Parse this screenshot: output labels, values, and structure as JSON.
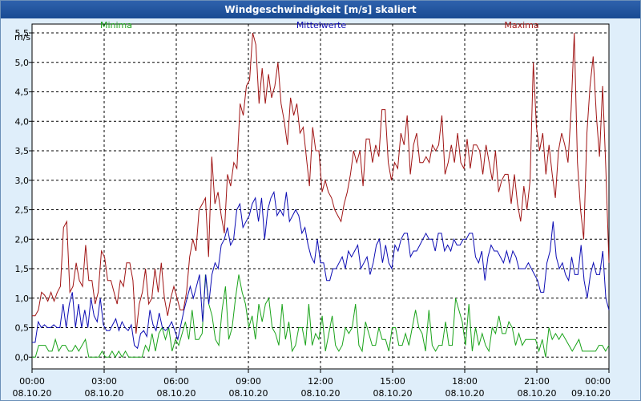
{
  "window": {
    "title": "Windgeschwindigkeit [m/s] skaliert"
  },
  "colors": {
    "min": "#1aa31a",
    "mean": "#0c0cb4",
    "max": "#a01414",
    "background": "#dfeefa",
    "titlebar": "#1e52a0"
  },
  "chart_data": {
    "type": "line",
    "title": "Windgeschwindigkeit [m/s] skaliert",
    "ylabel": "m/s",
    "ylim": [
      -0.2,
      5.65
    ],
    "yticks": [
      "0,0",
      "0,5",
      "1,0",
      "1,5",
      "2,0",
      "2,5",
      "3,0",
      "3,5",
      "4,0",
      "4,5",
      "5,0",
      "5,5"
    ],
    "xlim": [
      0,
      24
    ],
    "xticks": [
      {
        "time": "00:00",
        "date": "08.10.20"
      },
      {
        "time": "03:00",
        "date": "08.10.20"
      },
      {
        "time": "06:00",
        "date": "08.10.20"
      },
      {
        "time": "09:00",
        "date": "08.10.20"
      },
      {
        "time": "12:00",
        "date": "08.10.20"
      },
      {
        "time": "15:00",
        "date": "08.10.20"
      },
      {
        "time": "18:00",
        "date": "08.10.20"
      },
      {
        "time": "21:00",
        "date": "08.10.20"
      },
      {
        "time": "00:00",
        "date": "09.10.20"
      }
    ],
    "grid": true,
    "legend": [
      "Minima",
      "Mittelwerte",
      "Maxima"
    ],
    "x_step_hours": 0.16667,
    "series": [
      {
        "name": "Minima",
        "key": "min",
        "values": [
          0,
          0,
          0.2,
          0.2,
          0.2,
          0.1,
          0.1,
          0.3,
          0.1,
          0.2,
          0.2,
          0.1,
          0.1,
          0.2,
          0.1,
          0.2,
          0.3,
          0,
          0,
          0,
          0,
          0.1,
          0,
          0,
          0.1,
          0,
          0.1,
          0,
          0.1,
          0,
          0,
          0,
          0,
          0,
          0.2,
          0.1,
          0.4,
          0.1,
          0.4,
          0.5,
          0.3,
          0.5,
          0.1,
          0.3,
          0.2,
          0.4,
          0.6,
          0.3,
          0.8,
          0.3,
          0.3,
          0.4,
          1.4,
          0.9,
          0.7,
          0.3,
          0.2,
          0.8,
          1.2,
          0.3,
          0.5,
          1,
          1.4,
          1.1,
          0.9,
          0.5,
          0.7,
          0.3,
          0.9,
          0.6,
          0.9,
          1,
          0.5,
          0.4,
          0.2,
          0.9,
          0.3,
          0.6,
          0.1,
          0.2,
          0.5,
          0.5,
          0.2,
          0.9,
          0.2,
          0.4,
          0.3,
          0.7,
          0.1,
          0.4,
          0.7,
          0.2,
          0.1,
          0.2,
          0.5,
          0.4,
          0.5,
          0.9,
          0.2,
          0.1,
          0.6,
          0.4,
          0.2,
          0.2,
          0.5,
          0.3,
          0.3,
          0.1,
          0.5,
          0.5,
          0.2,
          0.2,
          0.4,
          0.2,
          0.5,
          0.8,
          0.5,
          0.4,
          0.1,
          0.8,
          0.2,
          0.1,
          0.2,
          0.2,
          0.6,
          0.2,
          0.2,
          1,
          0.8,
          0.6,
          0.2,
          0.9,
          0.1,
          0.5,
          0.2,
          0.4,
          0.2,
          0.1,
          0.5,
          0.4,
          0.7,
          0.4,
          0.4,
          0.6,
          0.5,
          0.2,
          0.4,
          0.2,
          0.3,
          0.3,
          0.3,
          0.3,
          0.1,
          0.3,
          0,
          0.5,
          0.3,
          0.4,
          0.3,
          0.4,
          0.3,
          0.2,
          0.1,
          0.2,
          0.3,
          0.1,
          0.1,
          0.1,
          0.1,
          0.1,
          0.2,
          0.2,
          0.1,
          0.2
        ]
      },
      {
        "name": "Mittelwerte",
        "key": "mean",
        "values": [
          0.25,
          0.25,
          0.6,
          0.5,
          0.55,
          0.5,
          0.5,
          0.55,
          0.5,
          0.5,
          0.9,
          0.5,
          0.9,
          1.1,
          0.5,
          0.9,
          0.5,
          0.8,
          0.5,
          1,
          0.7,
          0.6,
          1,
          0.55,
          0.45,
          0.45,
          0.55,
          0.65,
          0.45,
          0.6,
          0.5,
          0.45,
          0.55,
          0.2,
          0.15,
          0.4,
          0.45,
          0.35,
          0.8,
          0.55,
          0.45,
          0.75,
          0.5,
          0.45,
          0.5,
          0.6,
          0.45,
          0.3,
          0.55,
          0.8,
          1,
          1.2,
          1,
          1.2,
          1.4,
          0.6,
          1.4,
          0.9,
          1.4,
          1.6,
          1.5,
          1.9,
          2,
          2.2,
          1.9,
          2,
          2.5,
          2.6,
          2.2,
          2.3,
          2.4,
          2.6,
          2.7,
          2.3,
          2.7,
          2,
          2.5,
          2.7,
          2.8,
          2.4,
          2.5,
          2.4,
          2.8,
          2.3,
          2.4,
          2.5,
          2.4,
          2.1,
          2.2,
          1.9,
          1.7,
          1.6,
          2,
          1.6,
          1.6,
          1.3,
          1.3,
          1.5,
          1.5,
          1.6,
          1.7,
          1.5,
          1.8,
          1.7,
          1.8,
          1.9,
          1.5,
          1.6,
          1.7,
          1.4,
          1.6,
          1.9,
          2,
          1.6,
          1.9,
          1.6,
          1.5,
          1.9,
          1.8,
          2,
          2.1,
          2.1,
          1.7,
          1.8,
          1.8,
          1.9,
          2,
          2.1,
          2,
          2,
          1.8,
          2.1,
          2.1,
          1.8,
          1.9,
          1.8,
          2,
          1.9,
          1.9,
          2,
          2,
          2.1,
          2.1,
          1.7,
          1.6,
          1.8,
          1.3,
          1.7,
          1.9,
          1.8,
          1.8,
          1.7,
          1.6,
          1.8,
          1.6,
          1.8,
          1.7,
          1.5,
          1.5,
          1.5,
          1.6,
          1.5,
          1.4,
          1.3,
          1.1,
          1.1,
          1.6,
          1.8,
          2.3,
          1.7,
          1.5,
          1.6,
          1.4,
          1.3,
          1.7,
          1.4,
          1.4,
          1.9,
          1.3,
          1,
          1.4,
          1.6,
          1.4,
          1.4,
          1.8,
          1,
          0.8
        ]
      },
      {
        "name": "Maxima",
        "key": "max",
        "values": [
          0.7,
          0.7,
          0.8,
          1.1,
          1.05,
          0.95,
          1.1,
          0.95,
          1.1,
          1.2,
          2.2,
          2.3,
          1.1,
          1.2,
          1.6,
          1.3,
          1.2,
          1.9,
          1.3,
          1.3,
          0.9,
          1.1,
          1.8,
          1.7,
          1.3,
          1.3,
          1.1,
          0.9,
          1.3,
          1.2,
          1.6,
          1.6,
          1.3,
          0.4,
          0.9,
          1.1,
          1.5,
          0.9,
          1,
          1.5,
          1.1,
          1.6,
          1,
          0.7,
          1,
          1.2,
          1,
          0.8,
          0.8,
          1.1,
          1.7,
          2,
          1.8,
          2.5,
          2.6,
          2.7,
          1.7,
          3.4,
          2.6,
          2.8,
          2.4,
          2.1,
          3.1,
          2.9,
          3.3,
          3.2,
          4.3,
          4.1,
          4.6,
          4.7,
          5.5,
          5.3,
          4.3,
          4.9,
          4.3,
          4.8,
          4.4,
          4.6,
          5,
          4.3,
          4,
          3.6,
          4.4,
          4.1,
          4.3,
          3.8,
          3.9,
          3.4,
          2.9,
          3.9,
          3.5,
          3.5,
          2.8,
          3,
          2.8,
          2.7,
          2.5,
          2.4,
          2.3,
          2.6,
          2.8,
          3.1,
          3.5,
          3.3,
          3.5,
          2.9,
          3.7,
          3.7,
          3.3,
          3.6,
          3.4,
          4.2,
          4.2,
          3.3,
          3,
          3.3,
          3.2,
          3.8,
          3.6,
          4.1,
          3.1,
          3.6,
          3.8,
          3.3,
          3.3,
          3.4,
          3.3,
          3.6,
          3.5,
          3.6,
          4.1,
          3.1,
          3.3,
          3.6,
          3.3,
          3.8,
          3.3,
          3.2,
          3.7,
          3.2,
          3.6,
          3.6,
          3.5,
          3.1,
          3.6,
          3.3,
          3,
          3.5,
          2.8,
          3,
          3.1,
          3.1,
          2.6,
          3.1,
          2.6,
          2.3,
          2.9,
          2.5,
          3,
          5,
          3.9,
          3.5,
          3.8,
          3.1,
          3.6,
          3.1,
          2.7,
          3.5,
          3.8,
          3.6,
          3.3,
          4.2,
          5.5,
          3.3,
          2.5,
          2,
          3.8,
          4.6,
          5.1,
          4.1,
          3.4,
          4.6,
          3.2,
          1.6
        ]
      }
    ]
  }
}
